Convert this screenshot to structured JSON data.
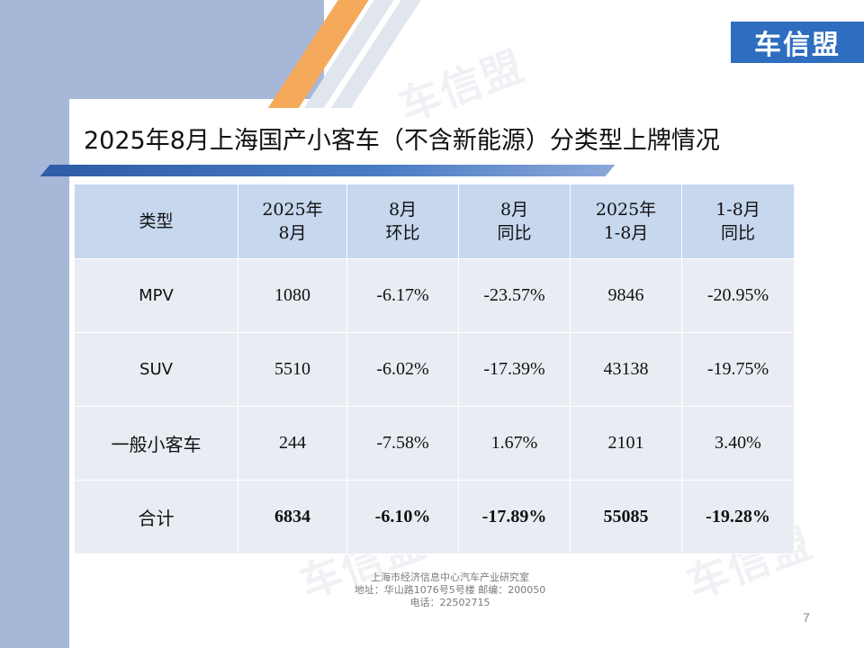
{
  "brand": {
    "logo_text": "车信盟",
    "watermark_text": "车信盟",
    "color": "#2e6dbf"
  },
  "title": "2025年8月上海国产小客车（不含新能源）分类型上牌情况",
  "table": {
    "headers": [
      [
        "类型"
      ],
      [
        "2025年",
        "8月"
      ],
      [
        "8月",
        "环比"
      ],
      [
        "8月",
        "同比"
      ],
      [
        "2025年",
        "1-8月"
      ],
      [
        "1-8月",
        "同比"
      ]
    ],
    "rows": [
      [
        "MPV",
        "1080",
        "-6.17%",
        "-23.57%",
        "9846",
        "-20.95%"
      ],
      [
        "SUV",
        "5510",
        "-6.02%",
        "-17.39%",
        "43138",
        "-19.75%"
      ],
      [
        "一般小客车",
        "244",
        "-7.58%",
        "1.67%",
        "2101",
        "3.40%"
      ],
      [
        "合计",
        "6834",
        "-6.10%",
        "-17.89%",
        "55085",
        "-19.28%"
      ]
    ]
  },
  "footer": {
    "line1": "上海市经济信息中心汽车产业研究室",
    "line2": "地址：华山路1076号5号楼    邮编：200050",
    "line3": "电话：22502715"
  },
  "page_number": "7"
}
